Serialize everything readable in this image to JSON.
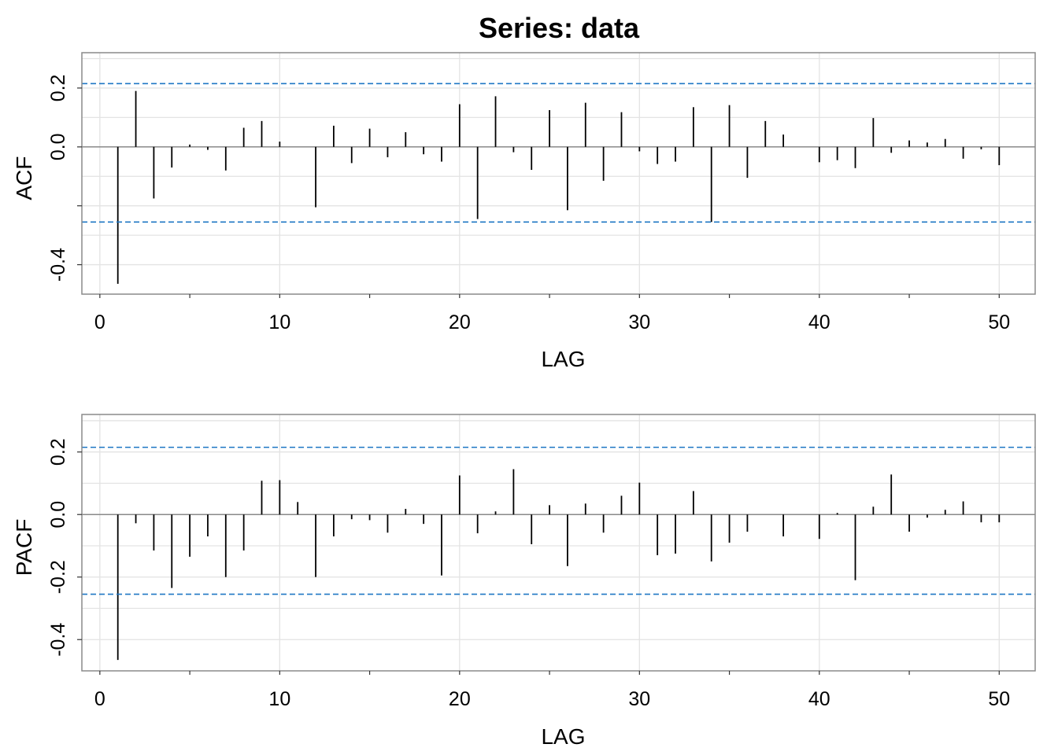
{
  "title": "Series:  data",
  "colors": {
    "bar": "#000000",
    "ci": "#1f77c4",
    "grid": "#e3e3e3",
    "zero": "#8a8a8a",
    "frame": "#8a8a8a"
  },
  "chart_data": [
    {
      "type": "bar",
      "name": "ACF",
      "xlabel": "LAG",
      "ylabel": "ACF",
      "xlim": [
        -1,
        52
      ],
      "ylim": [
        -0.5,
        0.32
      ],
      "xticks": [
        "0",
        "10",
        "20",
        "30",
        "40",
        "50"
      ],
      "yticks": [
        "-0.4",
        "0.0",
        "0.2"
      ],
      "grid": true,
      "ci": [
        0.215,
        -0.255
      ],
      "lags": [
        1,
        2,
        3,
        4,
        5,
        6,
        7,
        8,
        9,
        10,
        11,
        12,
        13,
        14,
        15,
        16,
        17,
        18,
        19,
        20,
        21,
        22,
        23,
        24,
        25,
        26,
        27,
        28,
        29,
        30,
        31,
        32,
        33,
        34,
        35,
        36,
        37,
        38,
        39,
        40,
        41,
        42,
        43,
        44,
        45,
        46,
        47,
        48,
        49,
        50
      ],
      "values": [
        -0.465,
        0.19,
        -0.175,
        -0.07,
        0.008,
        -0.01,
        -0.08,
        0.065,
        0.088,
        0.018,
        0.0,
        -0.205,
        0.072,
        -0.055,
        0.062,
        -0.035,
        0.05,
        -0.025,
        -0.05,
        0.145,
        -0.245,
        0.172,
        -0.018,
        -0.078,
        0.125,
        -0.215,
        0.15,
        -0.115,
        0.118,
        -0.015,
        -0.058,
        -0.05,
        0.135,
        -0.255,
        0.142,
        -0.105,
        0.088,
        0.042,
        0.0,
        -0.052,
        -0.045,
        -0.072,
        0.098,
        -0.02,
        0.022,
        0.015,
        0.027,
        -0.04,
        -0.008,
        -0.062
      ]
    },
    {
      "type": "bar",
      "name": "PACF",
      "xlabel": "LAG",
      "ylabel": "PACF",
      "xlim": [
        -1,
        52
      ],
      "ylim": [
        -0.5,
        0.32
      ],
      "xticks": [
        "0",
        "10",
        "20",
        "30",
        "40",
        "50"
      ],
      "yticks": [
        "-0.4",
        "-0.2",
        "0.0",
        "0.2"
      ],
      "grid": true,
      "ci": [
        0.215,
        -0.255
      ],
      "lags": [
        1,
        2,
        3,
        4,
        5,
        6,
        7,
        8,
        9,
        10,
        11,
        12,
        13,
        14,
        15,
        16,
        17,
        18,
        19,
        20,
        21,
        22,
        23,
        24,
        25,
        26,
        27,
        28,
        29,
        30,
        31,
        32,
        33,
        34,
        35,
        36,
        37,
        38,
        39,
        40,
        41,
        42,
        43,
        44,
        45,
        46,
        47,
        48,
        49,
        50
      ],
      "values": [
        -0.465,
        -0.028,
        -0.115,
        -0.235,
        -0.135,
        -0.07,
        -0.2,
        -0.115,
        0.108,
        0.11,
        0.04,
        -0.2,
        -0.07,
        -0.015,
        -0.018,
        -0.058,
        0.018,
        -0.03,
        -0.195,
        0.125,
        -0.06,
        0.01,
        0.145,
        -0.095,
        0.03,
        -0.165,
        0.035,
        -0.058,
        0.06,
        0.102,
        -0.13,
        -0.125,
        0.075,
        -0.15,
        -0.09,
        -0.055,
        0.0,
        -0.07,
        0.0,
        -0.078,
        0.005,
        -0.21,
        0.025,
        0.128,
        -0.055,
        -0.01,
        0.015,
        0.042,
        -0.025,
        -0.025
      ]
    }
  ]
}
